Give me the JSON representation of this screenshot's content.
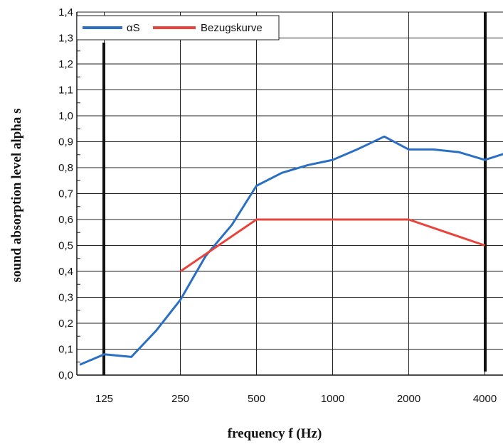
{
  "chart_data": {
    "type": "line",
    "title": "",
    "xlabel": "frequency f (Hz)",
    "ylabel": "sound absorption level alpha s",
    "x_scale": "log2",
    "x_ticks": [
      "125",
      "250",
      "500",
      "1000",
      "2000",
      "4000"
    ],
    "xlim": [
      100,
      5000
    ],
    "ylim": [
      0,
      1.4
    ],
    "y_ticks": [
      "0,0",
      "0,1",
      "0,2",
      "0,3",
      "0,4",
      "0,5",
      "0,6",
      "0,7",
      "0,8",
      "0,9",
      "1,0",
      "1,1",
      "1,2",
      "1,3",
      "1,4"
    ],
    "grid": true,
    "legend_position": "top-left",
    "series": [
      {
        "name": "αS",
        "color": "#2a6fc4",
        "points": [
          {
            "x": 100,
            "y": 0.04
          },
          {
            "x": 125,
            "y": 0.08
          },
          {
            "x": 160,
            "y": 0.07
          },
          {
            "x": 200,
            "y": 0.17
          },
          {
            "x": 250,
            "y": 0.29
          },
          {
            "x": 315,
            "y": 0.46
          },
          {
            "x": 400,
            "y": 0.58
          },
          {
            "x": 500,
            "y": 0.73
          },
          {
            "x": 630,
            "y": 0.78
          },
          {
            "x": 800,
            "y": 0.81
          },
          {
            "x": 1000,
            "y": 0.83
          },
          {
            "x": 1250,
            "y": 0.87
          },
          {
            "x": 1600,
            "y": 0.92
          },
          {
            "x": 2000,
            "y": 0.87
          },
          {
            "x": 2500,
            "y": 0.87
          },
          {
            "x": 3150,
            "y": 0.86
          },
          {
            "x": 4000,
            "y": 0.83
          },
          {
            "x": 5000,
            "y": 0.86
          }
        ]
      },
      {
        "name": "Bezugskurve",
        "color": "#e8443c",
        "points": [
          {
            "x": 250,
            "y": 0.4
          },
          {
            "x": 500,
            "y": 0.6
          },
          {
            "x": 1000,
            "y": 0.6
          },
          {
            "x": 2000,
            "y": 0.6
          },
          {
            "x": 4000,
            "y": 0.5
          }
        ]
      }
    ]
  }
}
